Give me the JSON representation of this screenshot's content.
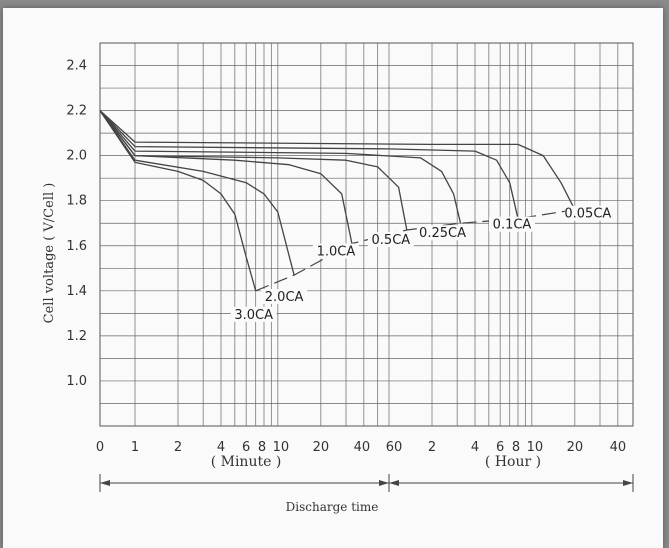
{
  "chart_data": {
    "type": "line",
    "title": "",
    "ylabel": "Cell voltage ( V/Cell )",
    "xlabel": "Discharge time",
    "ylim": [
      0.8,
      2.5
    ],
    "y_ticks": [
      "2.4",
      "2.2",
      "2.0",
      "1.8",
      "1.6",
      "1.4",
      "1.2",
      "1.0"
    ],
    "x_scale": "log",
    "x_ticks_minute": [
      "0",
      "1",
      "2",
      "4",
      "6",
      "8",
      "10",
      "20",
      "40",
      "60"
    ],
    "x_ticks_hour": [
      "2",
      "4",
      "6",
      "8",
      "10",
      "20",
      "40"
    ],
    "x_unit_minute": "( Minute )",
    "x_unit_hour": "( Hour )",
    "grid": true,
    "series": [
      {
        "name": "3.0CA",
        "points": [
          [
            0,
            2.2
          ],
          [
            1,
            1.97
          ],
          [
            2,
            1.93
          ],
          [
            3,
            1.89
          ],
          [
            4,
            1.83
          ],
          [
            5,
            1.74
          ],
          [
            6,
            1.55
          ],
          [
            7,
            1.4
          ]
        ]
      },
      {
        "name": "2.0CA",
        "points": [
          [
            0,
            2.2
          ],
          [
            1,
            1.98
          ],
          [
            3,
            1.93
          ],
          [
            6,
            1.88
          ],
          [
            8,
            1.83
          ],
          [
            10,
            1.75
          ],
          [
            13,
            1.47
          ]
        ]
      },
      {
        "name": "1.0CA",
        "points": [
          [
            0,
            2.2
          ],
          [
            1,
            2.0
          ],
          [
            5,
            1.98
          ],
          [
            12,
            1.96
          ],
          [
            20,
            1.92
          ],
          [
            28,
            1.83
          ],
          [
            33,
            1.61
          ]
        ]
      },
      {
        "name": "0.5CA",
        "points": [
          [
            0,
            2.2
          ],
          [
            1,
            2.0
          ],
          [
            10,
            1.99
          ],
          [
            30,
            1.98
          ],
          [
            50,
            1.95
          ],
          [
            70,
            1.86
          ],
          [
            80,
            1.67
          ]
        ]
      },
      {
        "name": "0.25CA",
        "points": [
          [
            0,
            2.2
          ],
          [
            1,
            2.02
          ],
          [
            30,
            2.01
          ],
          [
            100,
            1.99
          ],
          [
            140,
            1.93
          ],
          [
            170,
            1.83
          ],
          [
            190,
            1.7
          ]
        ]
      },
      {
        "name": "0.1CA",
        "points": [
          [
            0,
            2.2
          ],
          [
            1,
            2.04
          ],
          [
            60,
            2.03
          ],
          [
            240,
            2.02
          ],
          [
            340,
            1.98
          ],
          [
            420,
            1.88
          ],
          [
            480,
            1.72
          ]
        ]
      },
      {
        "name": "0.05CA",
        "points": [
          [
            0,
            2.2
          ],
          [
            1,
            2.06
          ],
          [
            120,
            2.05
          ],
          [
            480,
            2.05
          ],
          [
            720,
            2.0
          ],
          [
            960,
            1.88
          ],
          [
            1200,
            1.76
          ]
        ]
      }
    ],
    "cutoff_line": [
      [
        7,
        1.4
      ],
      [
        13,
        1.47
      ],
      [
        33,
        1.61
      ],
      [
        80,
        1.67
      ],
      [
        190,
        1.7
      ],
      [
        480,
        1.72
      ],
      [
        1200,
        1.76
      ]
    ]
  }
}
